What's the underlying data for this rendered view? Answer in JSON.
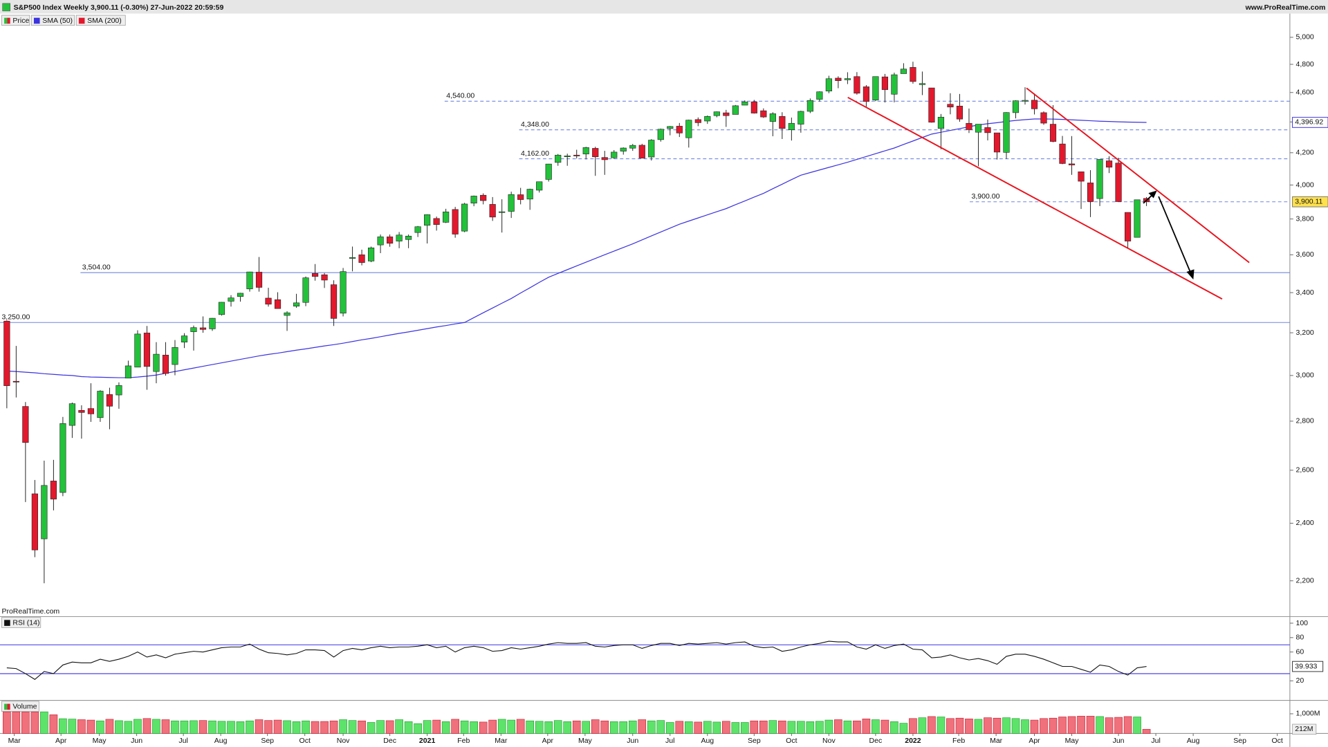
{
  "header": {
    "title": "S&P500 Index Weekly 3,900.11 (-0.30%) 27-Jun-2022 20:59:59",
    "source": "www.ProRealTime.com"
  },
  "chart_data": [
    {
      "type": "candlestick",
      "watermark": "ProRealTime.com",
      "log_scale": true,
      "ylim": [
        2087,
        5236
      ],
      "yticks": [
        {
          "value": 5000,
          "label": "5,000"
        },
        {
          "value": 4800,
          "label": "4,800"
        },
        {
          "value": 4600,
          "label": "4,600"
        },
        {
          "value": 4400,
          "label": "4,400"
        },
        {
          "value": 4200,
          "label": "4,200"
        },
        {
          "value": 4000,
          "label": "4,000"
        },
        {
          "value": 3800,
          "label": "3,800"
        },
        {
          "value": 3600,
          "label": "3,600"
        },
        {
          "value": 3400,
          "label": "3,400"
        },
        {
          "value": 3200,
          "label": "3,200"
        },
        {
          "value": 3000,
          "label": "3,000"
        },
        {
          "value": 2800,
          "label": "2,800"
        },
        {
          "value": 2600,
          "label": "2,600"
        },
        {
          "value": 2400,
          "label": "2,400"
        },
        {
          "value": 2200,
          "label": "2,200"
        }
      ],
      "series": [
        {
          "name": "Price",
          "up_color": "#22c23a",
          "down_color": "#e3182d",
          "last_value_label": "3,900.11",
          "open": [
            3257,
            2974,
            2863,
            2509,
            2344,
            2558,
            2514,
            2782,
            2846,
            2854,
            2815,
            2915,
            2913,
            2988,
            3038,
            3199,
            3018,
            3094,
            3050,
            3155,
            3205,
            3224,
            3219,
            3289,
            3356,
            3380,
            3419,
            3507,
            3372,
            3364,
            3285,
            3331,
            3350,
            3500,
            3493,
            3441,
            3296,
            3583,
            3600,
            3566,
            3654,
            3699,
            3675,
            3684,
            3723,
            3764,
            3803,
            3781,
            3855,
            3731,
            3892,
            3939,
            3885,
            3842,
            3844,
            3942,
            3916,
            3969,
            4034,
            4139,
            4178,
            4185,
            4192,
            4228,
            4170,
            4168,
            4210,
            4229,
            4248,
            4173,
            4284,
            4356,
            4372,
            4296,
            4416,
            4406,
            4442,
            4461,
            4450,
            4513,
            4536,
            4475,
            4403,
            4437,
            4348,
            4385,
            4471,
            4553,
            4610,
            4701,
            4689,
            4712,
            4640,
            4548,
            4710,
            4588,
            4733,
            4778,
            4655,
            4632,
            4357,
            4519,
            4507,
            4391,
            4332,
            4363,
            4328,
            4202,
            4462,
            4541,
            4547,
            4462,
            4385,
            4256,
            4130,
            4081,
            4013,
            3919,
            4149,
            4135,
            3838,
            3696,
            3920
          ],
          "high": [
            3260,
            3137,
            2882,
            2562,
            2638,
            2641,
            2818,
            2880,
            2868,
            2965,
            2934,
            2945,
            2969,
            3068,
            3212,
            3233,
            3155,
            3155,
            3165,
            3198,
            3235,
            3280,
            3272,
            3352,
            3387,
            3399,
            3509,
            3588,
            3425,
            3402,
            3306,
            3394,
            3484,
            3550,
            3502,
            3464,
            3529,
            3645,
            3628,
            3645,
            3712,
            3712,
            3726,
            3712,
            3760,
            3827,
            3814,
            3859,
            3870,
            3894,
            3937,
            3950,
            3928,
            3915,
            3960,
            3983,
            3978,
            4021,
            4130,
            4192,
            4194,
            4219,
            4238,
            4238,
            4212,
            4217,
            4234,
            4256,
            4257,
            4287,
            4356,
            4373,
            4393,
            4415,
            4430,
            4443,
            4470,
            4481,
            4514,
            4546,
            4549,
            4491,
            4465,
            4465,
            4429,
            4475,
            4559,
            4608,
            4718,
            4714,
            4743,
            4744,
            4652,
            4713,
            4731,
            4740,
            4808,
            4819,
            4748,
            4632,
            4453,
            4595,
            4590,
            4490,
            4385,
            4416,
            4328,
            4465,
            4546,
            4637,
            4594,
            4471,
            4513,
            4308,
            4307,
            4082,
            4091,
            4158,
            4178,
            4168,
            3838,
            3913,
            3928
          ],
          "low": [
            2855,
            2902,
            2478,
            2280,
            2192,
            2447,
            2500,
            2730,
            2727,
            2797,
            2797,
            2766,
            2853,
            2988,
            3038,
            2936,
            2965,
            2999,
            3001,
            3127,
            3115,
            3200,
            3209,
            3284,
            3329,
            3354,
            3405,
            3405,
            3329,
            3321,
            3209,
            3323,
            3331,
            3462,
            3424,
            3233,
            3280,
            3511,
            3543,
            3560,
            3609,
            3644,
            3636,
            3636,
            3698,
            3662,
            3734,
            3777,
            3694,
            3725,
            3874,
            3885,
            3789,
            3723,
            3806,
            3885,
            3853,
            3955,
            4021,
            4118,
            4118,
            4164,
            4158,
            4056,
            4062,
            4162,
            4188,
            4212,
            4164,
            4151,
            4271,
            4312,
            4301,
            4233,
            4372,
            4387,
            4431,
            4367,
            4450,
            4513,
            4456,
            4427,
            4306,
            4288,
            4278,
            4329,
            4459,
            4537,
            4595,
            4630,
            4659,
            4585,
            4495,
            4540,
            4531,
            4532,
            4733,
            4662,
            4582,
            4395,
            4222,
            4451,
            4401,
            4327,
            4115,
            4279,
            4157,
            4161,
            4424,
            4517,
            4450,
            4381,
            4267,
            4128,
            4062,
            3858,
            3811,
            3875,
            4073,
            3900,
            3637,
            3696,
            3875
          ],
          "close": [
            2954,
            2972,
            2711,
            2305,
            2541,
            2489,
            2790,
            2875,
            2837,
            2831,
            2930,
            2864,
            2955,
            3044,
            3194,
            3041,
            3098,
            3009,
            3130,
            3185,
            3225,
            3216,
            3271,
            3351,
            3373,
            3397,
            3508,
            3427,
            3341,
            3319,
            3298,
            3348,
            3477,
            3484,
            3465,
            3270,
            3510,
            3585,
            3558,
            3638,
            3699,
            3663,
            3709,
            3703,
            3756,
            3825,
            3768,
            3841,
            3714,
            3887,
            3934,
            3907,
            3811,
            3842,
            3943,
            3913,
            3975,
            4020,
            4129,
            4185,
            4180,
            4181,
            4233,
            4174,
            4156,
            4204,
            4230,
            4247,
            4166,
            4281,
            4352,
            4370,
            4327,
            4412,
            4395,
            4437,
            4468,
            4442,
            4509,
            4535,
            4459,
            4433,
            4455,
            4357,
            4391,
            4471,
            4545,
            4605,
            4697,
            4683,
            4698,
            4595,
            4538,
            4712,
            4620,
            4725,
            4766,
            4677,
            4663,
            4398,
            4432,
            4500,
            4419,
            4349,
            4385,
            4329,
            4204,
            4463,
            4543,
            4546,
            4488,
            4392,
            4272,
            4132,
            4123,
            4023,
            3901,
            4158,
            4109,
            3901,
            3675,
            3912,
            3900.11
          ]
        },
        {
          "name": "SMA (50)",
          "color": "#3b32e0",
          "last_value_label": "4,396.92",
          "values": [
            3020,
            3018,
            3015,
            3012,
            3008,
            3005,
            3002,
            3000,
            2995,
            2993,
            2992,
            2991,
            2990,
            2990,
            2993,
            2997,
            3002,
            3010,
            3018,
            3026,
            3034,
            3042,
            3050,
            3058,
            3066,
            3074,
            3082,
            3090,
            3097,
            3103,
            3110,
            3117,
            3123,
            3130,
            3137,
            3143,
            3150,
            3158,
            3166,
            3173,
            3181,
            3189,
            3197,
            3204,
            3212,
            3220,
            3228,
            3235,
            3243,
            3250,
            3274,
            3298,
            3322,
            3346,
            3370,
            3398,
            3425,
            3453,
            3480,
            3500,
            3520,
            3540,
            3560,
            3580,
            3600,
            3620,
            3640,
            3660,
            3682,
            3704,
            3726,
            3748,
            3770,
            3788,
            3806,
            3824,
            3842,
            3860,
            3883,
            3905,
            3928,
            3950,
            3978,
            4005,
            4033,
            4060,
            4076,
            4092,
            4108,
            4124,
            4140,
            4158,
            4176,
            4194,
            4212,
            4230,
            4253,
            4275,
            4298,
            4320,
            4332,
            4344,
            4356,
            4368,
            4380,
            4388,
            4395,
            4403,
            4410,
            4415,
            4420,
            4420,
            4419,
            4417,
            4414,
            4411,
            4408,
            4405,
            4403,
            4401,
            4399,
            4398,
            4396.92
          ]
        },
        {
          "name": "SMA (200)",
          "color": "#e3182d"
        }
      ],
      "level_color": "#6f86de",
      "levels": [
        {
          "value": 4540,
          "label": "4,540.00",
          "style": "dashed"
        },
        {
          "value": 4348,
          "label": "4,348.00",
          "style": "dashed"
        },
        {
          "value": 4162,
          "label": "4,162.00",
          "style": "dashed"
        },
        {
          "value": 3900,
          "label": "3,900.00",
          "style": "dashed"
        },
        {
          "value": 3504,
          "label": "3,504.00",
          "style": "solid"
        },
        {
          "value": 3250,
          "label": "3,250.00",
          "style": "solid"
        }
      ]
    },
    {
      "type": "line",
      "title": "RSI (14)",
      "color": "#111111",
      "level_color": "#3b32e0",
      "ylim": [
        -6,
        108
      ],
      "yticks": [
        100,
        80,
        60,
        20
      ],
      "levels": [
        70,
        30
      ],
      "values": [
        38,
        37,
        30,
        22,
        33,
        30,
        42,
        46,
        45,
        45,
        50,
        47,
        50,
        54,
        60,
        53,
        56,
        52,
        57,
        59,
        61,
        60,
        63,
        66,
        67,
        67,
        71,
        64,
        59,
        58,
        56,
        58,
        63,
        63,
        62,
        53,
        62,
        65,
        63,
        66,
        68,
        66,
        67,
        67,
        68,
        70,
        66,
        68,
        60,
        66,
        68,
        66,
        61,
        62,
        66,
        64,
        66,
        68,
        71,
        73,
        72,
        72,
        73,
        68,
        67,
        69,
        70,
        70,
        65,
        69,
        72,
        72,
        69,
        72,
        71,
        72,
        73,
        71,
        73,
        74,
        68,
        66,
        67,
        61,
        63,
        67,
        70,
        72,
        75,
        74,
        74,
        67,
        64,
        70,
        65,
        69,
        71,
        64,
        63,
        52,
        53,
        56,
        52,
        49,
        51,
        48,
        43,
        54,
        57,
        57,
        54,
        50,
        45,
        40,
        40,
        36,
        32,
        42,
        40,
        33,
        28,
        38,
        39.933
      ]
    },
    {
      "type": "bar",
      "title": "Volume",
      "ylim": [
        0,
        1636
      ],
      "yticks": [
        {
          "value": 1000,
          "label": "1,000M"
        }
      ],
      "last_value_label": "212M",
      "xlim": [
        -0.73,
        137.35
      ],
      "xticks": [
        {
          "value": 0.8,
          "label": "Mar"
        },
        {
          "value": 5.8,
          "label": "Apr"
        },
        {
          "value": 9.9,
          "label": "May"
        },
        {
          "value": 13.9,
          "label": "Jun"
        },
        {
          "value": 18.9,
          "label": "Jul"
        },
        {
          "value": 22.9,
          "label": "Aug"
        },
        {
          "value": 27.9,
          "label": "Sep"
        },
        {
          "value": 31.9,
          "label": "Oct"
        },
        {
          "value": 36,
          "label": "Nov"
        },
        {
          "value": 41,
          "label": "Dec"
        },
        {
          "value": 45,
          "label": "2021"
        },
        {
          "value": 48.9,
          "label": "Feb"
        },
        {
          "value": 52.9,
          "label": "Mar"
        },
        {
          "value": 57.9,
          "label": "Apr"
        },
        {
          "value": 61.9,
          "label": "May"
        },
        {
          "value": 67,
          "label": "Jun"
        },
        {
          "value": 71,
          "label": "Jul"
        },
        {
          "value": 75,
          "label": "Aug"
        },
        {
          "value": 80,
          "label": "Sep"
        },
        {
          "value": 84,
          "label": "Oct"
        },
        {
          "value": 88,
          "label": "Nov"
        },
        {
          "value": 93,
          "label": "Dec"
        },
        {
          "value": 97,
          "label": "2022"
        },
        {
          "value": 101.9,
          "label": "Feb"
        },
        {
          "value": 105.9,
          "label": "Mar"
        },
        {
          "value": 110,
          "label": "Apr"
        },
        {
          "value": 114,
          "label": "May"
        },
        {
          "value": 119,
          "label": "Jun"
        },
        {
          "value": 123,
          "label": "Jul"
        },
        {
          "value": 127,
          "label": "Aug"
        },
        {
          "value": 132,
          "label": "Sep"
        },
        {
          "value": 136,
          "label": "Oct"
        }
      ],
      "values": [
        1100,
        1100,
        1090,
        1090,
        1100,
        950,
        750,
        730,
        700,
        680,
        640,
        720,
        650,
        620,
        720,
        760,
        720,
        700,
        640,
        640,
        650,
        660,
        640,
        620,
        620,
        600,
        640,
        700,
        660,
        680,
        650,
        600,
        640,
        610,
        610,
        640,
        700,
        660,
        640,
        560,
        660,
        650,
        700,
        600,
        500,
        660,
        680,
        600,
        720,
        640,
        600,
        580,
        680,
        720,
        680,
        720,
        640,
        620,
        600,
        660,
        600,
        640,
        620,
        700,
        640,
        600,
        600,
        640,
        700,
        640,
        660,
        560,
        620,
        600,
        580,
        620,
        580,
        620,
        560,
        560,
        640,
        640,
        660,
        640,
        620,
        620,
        600,
        620,
        680,
        700,
        640,
        640,
        740,
        700,
        680,
        600,
        520,
        760,
        800,
        860,
        840,
        760,
        780,
        740,
        720,
        800,
        780,
        800,
        760,
        700,
        680,
        760,
        780,
        840,
        860,
        880,
        880,
        860,
        800,
        820,
        860,
        840,
        212
      ]
    }
  ]
}
